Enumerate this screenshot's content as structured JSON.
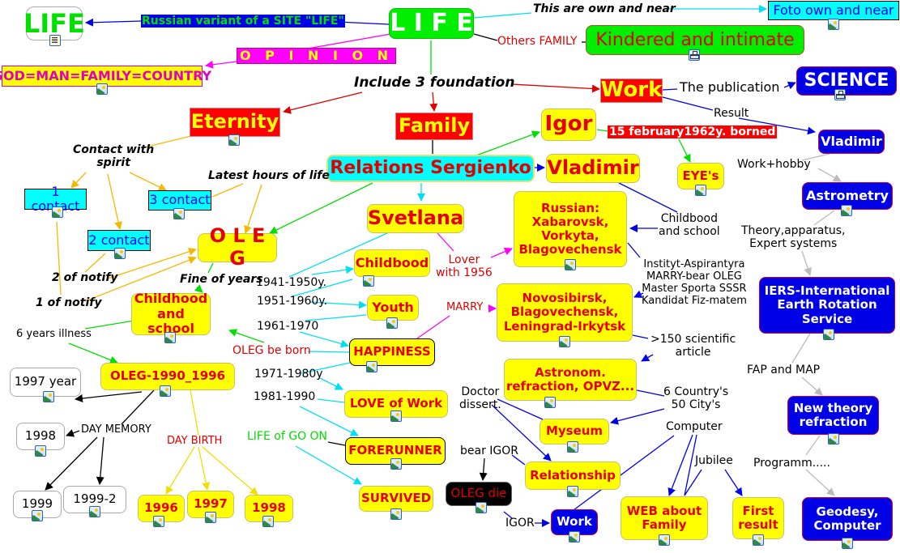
{
  "colors": {
    "yellow": "#ffff00",
    "red": "#ff0000",
    "blue": "#0000e6",
    "cyan": "#00ffff",
    "green": "#00ee00",
    "magenta": "#ff00ff"
  },
  "nodes": {
    "life_small": "LIFE",
    "life_main": "L I F E",
    "foto": "Foto own and near",
    "kindered": "Kindered and intimate",
    "god": "GOD=MAN=FAMILY=COUNTRY",
    "work_top": "Work",
    "science": "SCIENCE",
    "eternity": "Eternity",
    "family": "Family",
    "igor": "Igor",
    "vladimir_blue": "Vladimir",
    "relations": "Relations Sergienko",
    "vladimir_yellow": "Vladimir",
    "eyes": "EYE's",
    "contact1": "1 contact",
    "contact3": "3 contact",
    "astrometry": "Astrometry",
    "svetlana": "Svetlana",
    "russian": "Russian:\nXabarovsk,\nVorkyta,\nBlagovechensk",
    "contact2": "2 contact",
    "oleg": "O L E G",
    "childbood": "Childbood",
    "iers": "IERS-International\nEarth Rotation\nService",
    "novosibirsk": "Novosibirsk,\nBlagovechensk,\nLeningrad-Irkytsk",
    "childhood_school": "Childhood\nand school",
    "youth": "Youth",
    "happiness": "HAPPINESS",
    "oleg1990": "OLEG-1990_1996",
    "year1997": "1997 year",
    "astronom": "Astronom.\nrefraction, OPVZ...",
    "new_theory": "New theory\nrefraction",
    "love_work": "LOVE of Work",
    "w1998": "1998",
    "myseum": "Myseum",
    "forerunner": "FORERUNNER",
    "relationship": "Relationship",
    "w1999": "1999",
    "w1999_2": "1999-2",
    "y1996": "1996",
    "y1997": "1997",
    "y1998": "1998",
    "survived": "SURVIVED",
    "oleg_die": "OLEG die",
    "work_blue": "Work",
    "web_family": "WEB about\nFamily",
    "first_result": "First\nresult",
    "geodesy": "Geodesy,\nComputer"
  },
  "links": {
    "russian_site": "Russian variant of a SITE \"LIFE\"",
    "opinion": "O P I N I O N",
    "own_near": "This are own and near",
    "others_family": "Others FAMILY",
    "include": "Include 3 foundation",
    "publication": "The publication",
    "result": "Result",
    "borned": "15 february1962y. borned",
    "contact_spirit": "Contact with\nspirit",
    "latest_hours": "Latest hours of life",
    "work_hobby": "Work+hobby",
    "childbood_school": "Childbood\nand school",
    "theory": "Theory,apparatus,\nExpert systems",
    "lover": "Lover\nwith 1956",
    "institut": "Instityt-Aspirantyra\nMARRY-bear OLEG\nMaster Sporta SSSR\nKandidat Fiz-matem",
    "p1941": "1941-1950y.",
    "notify2": "2 of notify",
    "fine_years": "Fine of years",
    "notify1": "1 of notify",
    "p1951": "1951-1960y.",
    "marry": "MARRY",
    "p1961": "1961-1970",
    "illness": "6 years illness",
    "articles": ">150 scientific\narticle",
    "oleg_born": "OLEG be born",
    "fap": "FAP and MAP",
    "p1971": "1971-1980y",
    "doctor": "Doctor\ndissert.",
    "countries": "6 Country's\n50 City's",
    "p1981": "1981-1990",
    "day_memory": "DAY MEMORY",
    "computer": "Computer",
    "go_on": "LIFE of GO ON",
    "day_birth": "DAY BIRTH",
    "bear_igor": "bear IGOR",
    "jubilee": "Jubilee",
    "programm": "Programm.....",
    "igor": "IGOR"
  }
}
